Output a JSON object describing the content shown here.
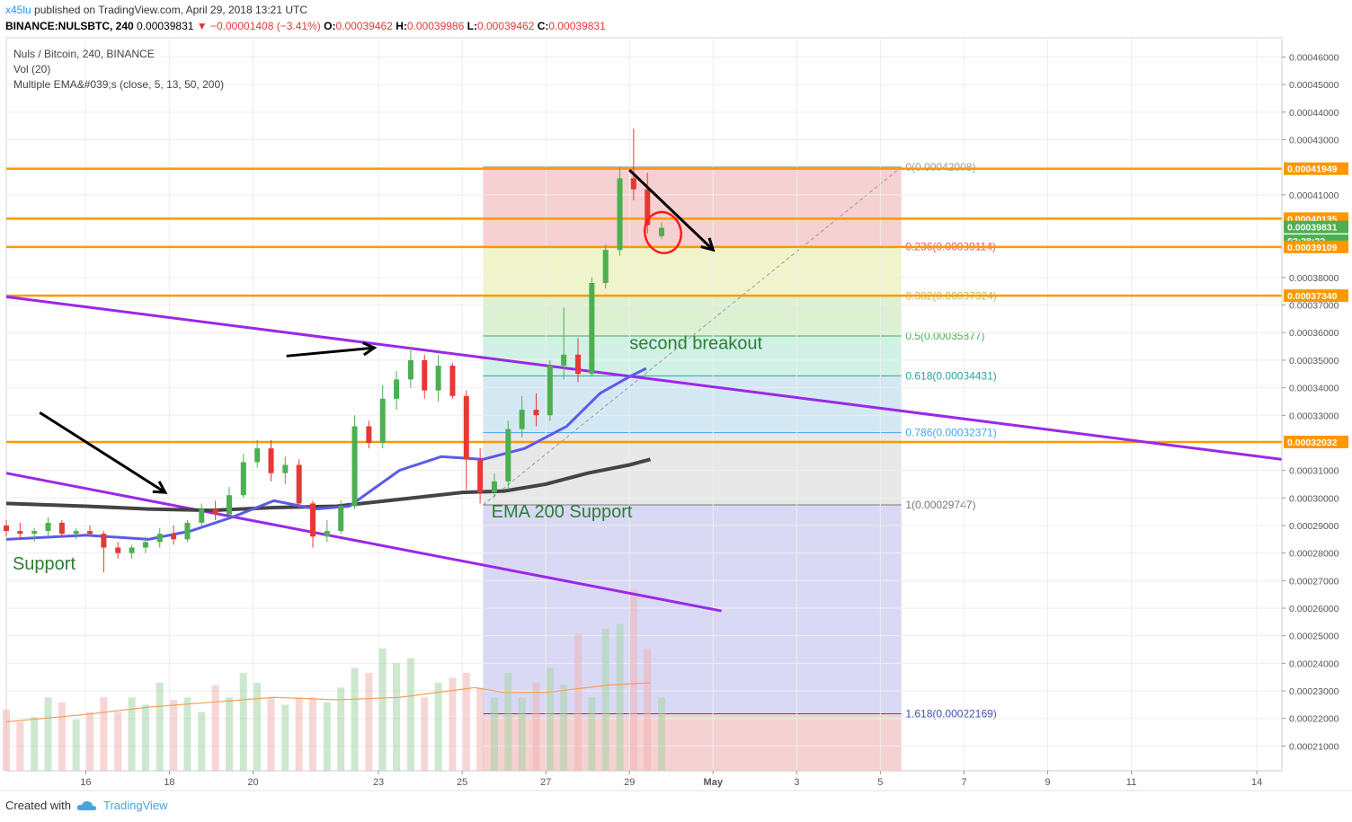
{
  "header": {
    "author": "x45lu",
    "published": "published on TradingView.com, April 29, 2018 13:21 UTC",
    "symbol": "BINANCE:NULSBTC, 240",
    "price": "0.00039831",
    "change": "▼ −0.00001408 (−3.41%)",
    "ohlc": [
      {
        "k": "O:",
        "v": "0.00039462"
      },
      {
        "k": "H:",
        "v": "0.00039986"
      },
      {
        "k": "L:",
        "v": "0.00039462"
      },
      {
        "k": "C:",
        "v": "0.00039831"
      }
    ]
  },
  "legend": {
    "line1": "Nuls / Bitcoin, 240, BINANCE",
    "line2": "Vol (20)",
    "line3": "Multiple EMA&#039;s (close, 5, 13, 50, 200)"
  },
  "footer": {
    "created": "Created with",
    "brand": "TradingView"
  },
  "colors": {
    "up": "#4caf50",
    "down": "#e53935",
    "ema_blue": "#5b5bea",
    "ema_black": "#444444",
    "level_orange": "#ff9800",
    "trend_purple": "#9c27e8"
  },
  "chart_data": {
    "type": "candlestick",
    "title": "Nuls / Bitcoin, 240, BINANCE",
    "x_ticks": [
      "16",
      "18",
      "20",
      "23",
      "25",
      "27",
      "29",
      "May",
      "3",
      "5",
      "7",
      "9",
      "11",
      "14"
    ],
    "x_tick_days": [
      16,
      18,
      20,
      23,
      25,
      27,
      29,
      31,
      33,
      35,
      37,
      39,
      41,
      44
    ],
    "xlim": [
      14.1,
      44.6
    ],
    "ylim": [
      0.000201,
      0.000467
    ],
    "y_ticks": [
      "0.00046000",
      "0.00045000",
      "0.00044000",
      "0.00043000",
      "0.00041000",
      "0.00038000",
      "0.00037000",
      "0.00036000",
      "0.00035000",
      "0.00034000",
      "0.00033000",
      "0.00031000",
      "0.00030000",
      "0.00029000",
      "0.00028000",
      "0.00027000",
      "0.00026000",
      "0.00025000",
      "0.00024000",
      "0.00023000",
      "0.00022000",
      "0.00021000"
    ],
    "y_tick_values": [
      0.00046,
      0.00045,
      0.00044,
      0.00043,
      0.00041,
      0.00038,
      0.00037,
      0.00036,
      0.00035,
      0.00034,
      0.00033,
      0.00031,
      0.0003,
      0.00029,
      0.00028,
      0.00027,
      0.00026,
      0.00025,
      0.00024,
      0.00023,
      0.00022,
      0.00021
    ],
    "price_labels": [
      {
        "text": "0.00041949",
        "value": 0.00041949,
        "color": "#ff9800"
      },
      {
        "text": "0.00040135",
        "value": 0.00040135,
        "color": "#ff9800"
      },
      {
        "text": "0.00039831",
        "value": 0.00039831,
        "color": "#4caf50"
      },
      {
        "text": "02:38:32",
        "value": 0.00039331,
        "color": "#4caf50"
      },
      {
        "text": "0.00039109",
        "value": 0.00039109,
        "color": "#ff9800"
      },
      {
        "text": "0.00037340",
        "value": 0.0003734,
        "color": "#ff9800"
      },
      {
        "text": "0.00032032",
        "value": 0.00032032,
        "color": "#ff9800"
      }
    ],
    "horizontal_levels": [
      0.00041949,
      0.00040135,
      0.00039109,
      0.0003734,
      0.00032032
    ],
    "fib": {
      "day_start": 25.5,
      "day_end": 35.5,
      "levels": [
        {
          "label": "0(0.00042008)",
          "value": 0.00042008,
          "color": "#999999"
        },
        {
          "label": "0.236(0.00039114)",
          "value": 0.00039114,
          "color": "#ef5350"
        },
        {
          "label": "0.382(0.00037324)",
          "value": 0.00037324,
          "color": "#b8c24a"
        },
        {
          "label": "0.5(0.00035877)",
          "value": 0.00035877,
          "color": "#4caf50"
        },
        {
          "label": "0.618(0.00034431)",
          "value": 0.00034431,
          "color": "#26a69a"
        },
        {
          "label": "0.786(0.00032371)",
          "value": 0.00032371,
          "color": "#42a5f5"
        },
        {
          "label": "1(0.00029747)",
          "value": 0.00029747,
          "color": "#777777"
        },
        {
          "label": "1.618(0.00022169)",
          "value": 0.00022169,
          "color": "#3f51b5"
        }
      ]
    },
    "annotations": [
      {
        "text": "second breakout",
        "day": 29.0,
        "value": 0.000354,
        "color": "#2e7d32"
      },
      {
        "text": "EMA 200 Support",
        "day": 25.7,
        "value": 0.000293,
        "color": "#2e7d32"
      },
      {
        "text": "Support",
        "day": 14.25,
        "value": 0.000274,
        "color": "#2e7d32"
      }
    ],
    "candles": [
      {
        "d": 14.1,
        "o": 0.00029,
        "h": 0.000292,
        "l": 0.000286,
        "c": 0.000288
      },
      {
        "d": 14.43,
        "o": 0.000288,
        "h": 0.000291,
        "l": 0.000285,
        "c": 0.000287
      },
      {
        "d": 14.77,
        "o": 0.000287,
        "h": 0.000289,
        "l": 0.000284,
        "c": 0.000288
      },
      {
        "d": 15.1,
        "o": 0.000288,
        "h": 0.000293,
        "l": 0.000286,
        "c": 0.000291
      },
      {
        "d": 15.43,
        "o": 0.000291,
        "h": 0.000292,
        "l": 0.000286,
        "c": 0.000287
      },
      {
        "d": 15.77,
        "o": 0.000287,
        "h": 0.000289,
        "l": 0.000285,
        "c": 0.000288
      },
      {
        "d": 16.1,
        "o": 0.000288,
        "h": 0.00029,
        "l": 0.000286,
        "c": 0.000287
      },
      {
        "d": 16.43,
        "o": 0.000287,
        "h": 0.000288,
        "l": 0.000273,
        "c": 0.000282
      },
      {
        "d": 16.77,
        "o": 0.000282,
        "h": 0.000284,
        "l": 0.000278,
        "c": 0.00028
      },
      {
        "d": 17.1,
        "o": 0.00028,
        "h": 0.000283,
        "l": 0.000278,
        "c": 0.000282
      },
      {
        "d": 17.43,
        "o": 0.000282,
        "h": 0.000286,
        "l": 0.00028,
        "c": 0.000284
      },
      {
        "d": 17.77,
        "o": 0.000284,
        "h": 0.000289,
        "l": 0.000282,
        "c": 0.000287
      },
      {
        "d": 18.1,
        "o": 0.000287,
        "h": 0.00029,
        "l": 0.000283,
        "c": 0.000285
      },
      {
        "d": 18.43,
        "o": 0.000285,
        "h": 0.000292,
        "l": 0.000284,
        "c": 0.000291
      },
      {
        "d": 18.77,
        "o": 0.000291,
        "h": 0.000298,
        "l": 0.00029,
        "c": 0.000296
      },
      {
        "d": 19.1,
        "o": 0.000296,
        "h": 0.000299,
        "l": 0.000292,
        "c": 0.000294
      },
      {
        "d": 19.43,
        "o": 0.000294,
        "h": 0.000304,
        "l": 0.000293,
        "c": 0.000301
      },
      {
        "d": 19.77,
        "o": 0.000301,
        "h": 0.000316,
        "l": 0.0003,
        "c": 0.000313
      },
      {
        "d": 20.1,
        "o": 0.000313,
        "h": 0.000321,
        "l": 0.000311,
        "c": 0.000318
      },
      {
        "d": 20.43,
        "o": 0.000318,
        "h": 0.000321,
        "l": 0.000306,
        "c": 0.000309
      },
      {
        "d": 20.77,
        "o": 0.000309,
        "h": 0.000315,
        "l": 0.000305,
        "c": 0.000312
      },
      {
        "d": 21.1,
        "o": 0.000312,
        "h": 0.000314,
        "l": 0.000296,
        "c": 0.000298
      },
      {
        "d": 21.43,
        "o": 0.000298,
        "h": 0.000299,
        "l": 0.000282,
        "c": 0.000286
      },
      {
        "d": 21.77,
        "o": 0.000286,
        "h": 0.000292,
        "l": 0.000284,
        "c": 0.000288
      },
      {
        "d": 22.1,
        "o": 0.000288,
        "h": 0.000299,
        "l": 0.000287,
        "c": 0.000297
      },
      {
        "d": 22.43,
        "o": 0.000297,
        "h": 0.00033,
        "l": 0.000296,
        "c": 0.000326
      },
      {
        "d": 22.77,
        "o": 0.000326,
        "h": 0.000328,
        "l": 0.000318,
        "c": 0.00032
      },
      {
        "d": 23.1,
        "o": 0.00032,
        "h": 0.000341,
        "l": 0.000318,
        "c": 0.000336
      },
      {
        "d": 23.43,
        "o": 0.000336,
        "h": 0.000346,
        "l": 0.000332,
        "c": 0.000343
      },
      {
        "d": 23.77,
        "o": 0.000343,
        "h": 0.000355,
        "l": 0.00034,
        "c": 0.00035
      },
      {
        "d": 24.1,
        "o": 0.00035,
        "h": 0.000352,
        "l": 0.000336,
        "c": 0.000339
      },
      {
        "d": 24.43,
        "o": 0.000339,
        "h": 0.000352,
        "l": 0.000335,
        "c": 0.000348
      },
      {
        "d": 24.77,
        "o": 0.000348,
        "h": 0.000349,
        "l": 0.000336,
        "c": 0.000337
      },
      {
        "d": 25.1,
        "o": 0.000337,
        "h": 0.000339,
        "l": 0.000303,
        "c": 0.000314
      },
      {
        "d": 25.43,
        "o": 0.000314,
        "h": 0.000318,
        "l": 0.000298,
        "c": 0.000302
      },
      {
        "d": 25.77,
        "o": 0.000302,
        "h": 0.000309,
        "l": 0.0003,
        "c": 0.000306
      },
      {
        "d": 26.1,
        "o": 0.000306,
        "h": 0.000328,
        "l": 0.000303,
        "c": 0.000325
      },
      {
        "d": 26.43,
        "o": 0.000325,
        "h": 0.000337,
        "l": 0.000322,
        "c": 0.000332
      },
      {
        "d": 26.77,
        "o": 0.000332,
        "h": 0.000338,
        "l": 0.000326,
        "c": 0.00033
      },
      {
        "d": 27.1,
        "o": 0.00033,
        "h": 0.00035,
        "l": 0.000328,
        "c": 0.000348
      },
      {
        "d": 27.43,
        "o": 0.000348,
        "h": 0.000369,
        "l": 0.000343,
        "c": 0.000352
      },
      {
        "d": 27.77,
        "o": 0.000352,
        "h": 0.000358,
        "l": 0.000342,
        "c": 0.000345
      },
      {
        "d": 28.1,
        "o": 0.000345,
        "h": 0.00038,
        "l": 0.000344,
        "c": 0.000378
      },
      {
        "d": 28.43,
        "o": 0.000378,
        "h": 0.000392,
        "l": 0.000376,
        "c": 0.00039
      },
      {
        "d": 28.77,
        "o": 0.00039,
        "h": 0.00042,
        "l": 0.000388,
        "c": 0.000416
      },
      {
        "d": 29.1,
        "o": 0.000416,
        "h": 0.000434,
        "l": 0.000408,
        "c": 0.000412
      },
      {
        "d": 29.43,
        "o": 0.000412,
        "h": 0.000418,
        "l": 0.000396,
        "c": 0.000399
      },
      {
        "d": 29.77,
        "o": 0.000395,
        "h": 0.0004,
        "l": 0.000394,
        "c": 0.000398
      }
    ],
    "ema_blue": [
      [
        14.1,
        0.000285
      ],
      [
        16,
        0.0002865
      ],
      [
        17.5,
        0.000285
      ],
      [
        18.5,
        0.000288
      ],
      [
        19.5,
        0.000293
      ],
      [
        20.5,
        0.000299
      ],
      [
        21.5,
        0.000296
      ],
      [
        22.3,
        0.000297
      ],
      [
        23.5,
        0.00031
      ],
      [
        24.5,
        0.000315
      ],
      [
        25.5,
        0.000314
      ],
      [
        26.5,
        0.000318
      ],
      [
        27.5,
        0.000326
      ],
      [
        28.3,
        0.000338
      ],
      [
        29.0,
        0.000344
      ],
      [
        29.4,
        0.000347
      ]
    ],
    "ema_black": [
      [
        14.1,
        0.000298
      ],
      [
        16,
        0.000297
      ],
      [
        17.5,
        0.000296
      ],
      [
        19,
        0.0002955
      ],
      [
        20.5,
        0.0002965
      ],
      [
        22,
        0.000297
      ],
      [
        23.5,
        0.0002995
      ],
      [
        25,
        0.000302
      ],
      [
        26,
        0.0003025
      ],
      [
        27,
        0.000305
      ],
      [
        28,
        0.000309
      ],
      [
        29,
        0.000312
      ],
      [
        29.5,
        0.000314
      ]
    ],
    "vol_ma": [
      [
        14.1,
        0.2
      ],
      [
        16,
        0.23
      ],
      [
        17.5,
        0.26
      ],
      [
        19,
        0.28
      ],
      [
        20.5,
        0.3
      ],
      [
        22,
        0.29
      ],
      [
        23.5,
        0.3
      ],
      [
        25.3,
        0.34
      ],
      [
        26,
        0.32
      ],
      [
        27,
        0.32
      ],
      [
        28.5,
        0.35
      ],
      [
        29.5,
        0.36
      ]
    ],
    "volumes": [
      0.25,
      0.2,
      0.22,
      0.3,
      0.28,
      0.21,
      0.24,
      0.3,
      0.24,
      0.3,
      0.27,
      0.36,
      0.29,
      0.3,
      0.24,
      0.35,
      0.3,
      0.4,
      0.36,
      0.3,
      0.27,
      0.3,
      0.3,
      0.28,
      0.34,
      0.42,
      0.4,
      0.5,
      0.44,
      0.46,
      0.3,
      0.36,
      0.38,
      0.4,
      0.34,
      0.3,
      0.4,
      0.3,
      0.36,
      0.42,
      0.35,
      0.56,
      0.3,
      0.58,
      0.6,
      0.74,
      0.5,
      0.3
    ]
  }
}
